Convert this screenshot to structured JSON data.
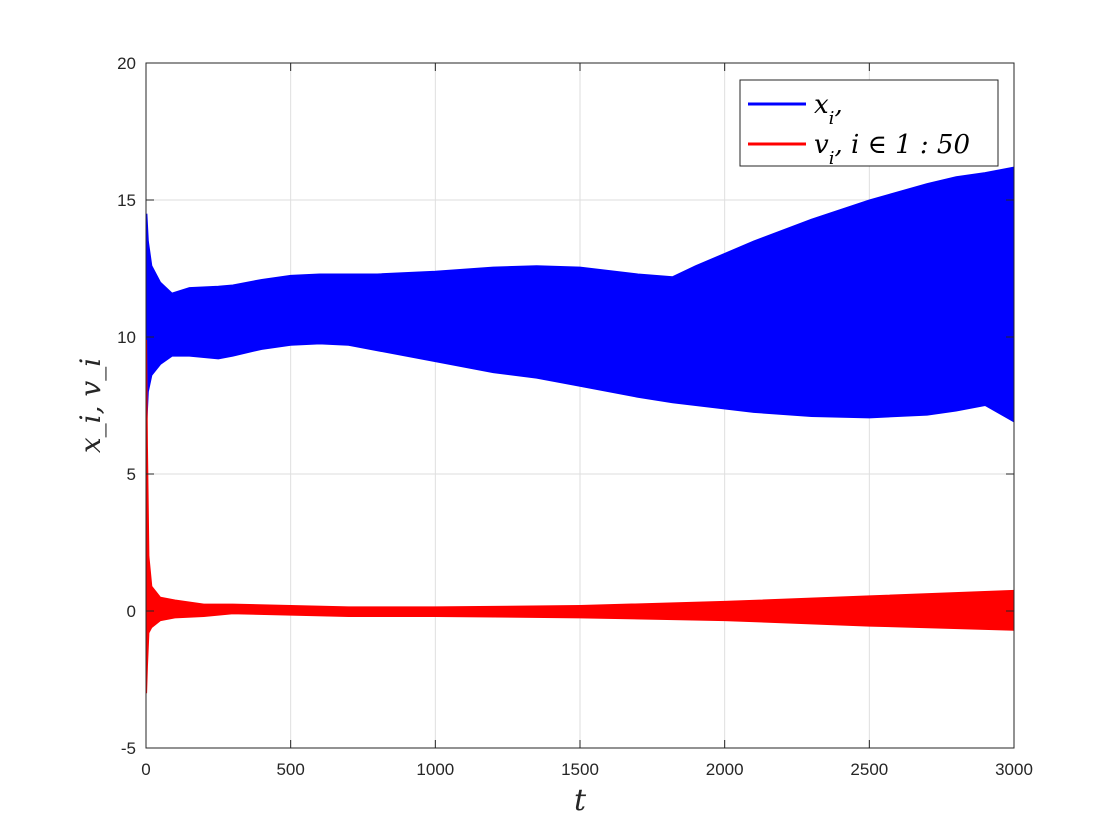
{
  "chart_data": {
    "type": "area",
    "xlabel": "t",
    "ylabel": "x_i,  v_i",
    "xlim": [
      0,
      3000
    ],
    "ylim": [
      -5,
      20
    ],
    "x_ticks": [
      0,
      500,
      1000,
      1500,
      2000,
      2500,
      3000
    ],
    "y_ticks": [
      -5,
      0,
      5,
      10,
      15,
      20
    ],
    "x_tick_labels": [
      "0",
      "500",
      "1000",
      "1500",
      "2000",
      "2500",
      "3000"
    ],
    "y_tick_labels": [
      "-5",
      "0",
      "5",
      "10",
      "15",
      "20"
    ],
    "grid": true,
    "legend_position": "top-right",
    "series": [
      {
        "name": "x_i,",
        "legend_label": "x",
        "legend_sub": "i",
        "legend_rest": ",",
        "color": "#0000ff",
        "x": [
          0,
          3,
          8,
          20,
          50,
          90,
          150,
          250,
          300,
          400,
          500,
          600,
          700,
          800,
          1000,
          1200,
          1350,
          1500,
          1700,
          1820,
          1900,
          2100,
          2300,
          2500,
          2700,
          2800,
          2900,
          3000
        ],
        "upper": [
          10.0,
          14.5,
          13.5,
          12.6,
          12.0,
          11.6,
          11.8,
          11.85,
          11.9,
          12.1,
          12.25,
          12.3,
          12.3,
          12.3,
          12.4,
          12.55,
          12.6,
          12.55,
          12.3,
          12.2,
          12.6,
          13.5,
          14.3,
          15.0,
          15.6,
          15.85,
          16.0,
          16.2
        ],
        "lower": [
          10.0,
          6.9,
          8.0,
          8.6,
          9.0,
          9.3,
          9.3,
          9.2,
          9.3,
          9.55,
          9.7,
          9.75,
          9.7,
          9.5,
          9.1,
          8.7,
          8.5,
          8.2,
          7.8,
          7.6,
          7.5,
          7.25,
          7.1,
          7.05,
          7.15,
          7.3,
          7.5,
          6.9
        ]
      },
      {
        "name": "v_i,  i ∈ 1 : 50",
        "legend_label": "v",
        "legend_sub": "i",
        "legend_rest": ",  i ∈ 1 : 50",
        "color": "#ff0000",
        "x": [
          0,
          2,
          5,
          10,
          20,
          50,
          100,
          200,
          300,
          500,
          700,
          1000,
          1500,
          2000,
          2500,
          3000
        ],
        "upper": [
          0.0,
          9.9,
          6.0,
          2.0,
          0.9,
          0.5,
          0.4,
          0.25,
          0.25,
          0.2,
          0.15,
          0.15,
          0.2,
          0.35,
          0.55,
          0.75
        ],
        "lower": [
          0.0,
          -3.0,
          -2.0,
          -0.8,
          -0.6,
          -0.35,
          -0.25,
          -0.2,
          -0.1,
          -0.15,
          -0.2,
          -0.2,
          -0.25,
          -0.35,
          -0.55,
          -0.7
        ]
      }
    ]
  }
}
